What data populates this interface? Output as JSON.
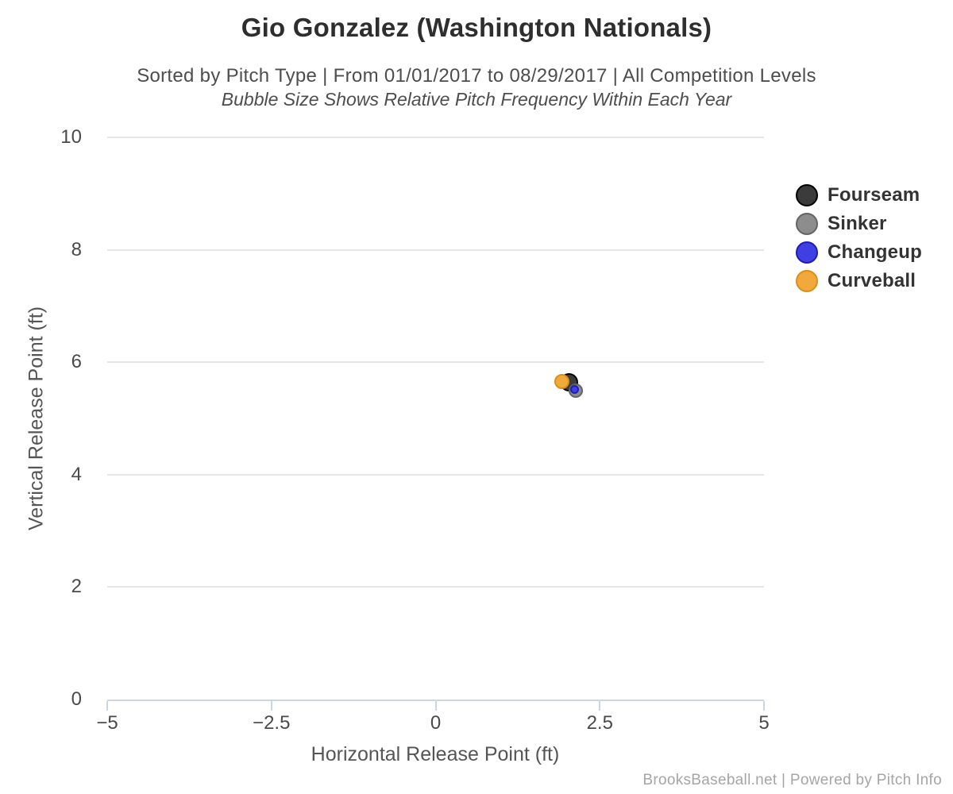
{
  "footer": {
    "credit": "BrooksBaseball.net | Powered by Pitch Info"
  },
  "chart_data": {
    "type": "scatter",
    "subtype": "bubble",
    "title": "Gio Gonzalez (Washington Nationals)",
    "subtitle": "Sorted by Pitch Type | From 01/01/2017 to 08/29/2017 | All Competition Levels",
    "note": "Bubble Size Shows Relative Pitch Frequency Within Each Year",
    "xlabel": "Horizontal Release Point (ft)",
    "ylabel": "Vertical Release Point (ft)",
    "xlim": [
      -5,
      5
    ],
    "ylim": [
      0,
      10
    ],
    "grid": "horizontal",
    "legend_position": "right-middle",
    "x_ticks": [
      {
        "v": -5,
        "label": "−5"
      },
      {
        "v": -2.5,
        "label": "−2.5"
      },
      {
        "v": 0,
        "label": "0"
      },
      {
        "v": 2.5,
        "label": "2.5"
      },
      {
        "v": 5,
        "label": "5"
      }
    ],
    "y_ticks": [
      {
        "v": 0,
        "label": "0"
      },
      {
        "v": 2,
        "label": "2"
      },
      {
        "v": 4,
        "label": "4"
      },
      {
        "v": 6,
        "label": "6"
      },
      {
        "v": 8,
        "label": "8"
      },
      {
        "v": 10,
        "label": "10"
      }
    ],
    "series": [
      {
        "name": "Fourseam",
        "fill": "#3b3b3b",
        "stroke": "#000000",
        "points": [
          {
            "x": 2.03,
            "y": 5.64,
            "r": 11.5
          }
        ]
      },
      {
        "name": "Sinker",
        "fill": "#8d8d8d",
        "stroke": "#646464",
        "points": [
          {
            "x": 2.13,
            "y": 5.5,
            "r": 9
          }
        ]
      },
      {
        "name": "Changeup",
        "fill": "#4040e2",
        "stroke": "#1d1db4",
        "points": [
          {
            "x": 2.12,
            "y": 5.51,
            "r": 5.5
          }
        ]
      },
      {
        "name": "Curveball",
        "fill": "#f2a93b",
        "stroke": "#d9901a",
        "points": [
          {
            "x": 1.92,
            "y": 5.65,
            "r": 9.5
          }
        ]
      }
    ]
  }
}
